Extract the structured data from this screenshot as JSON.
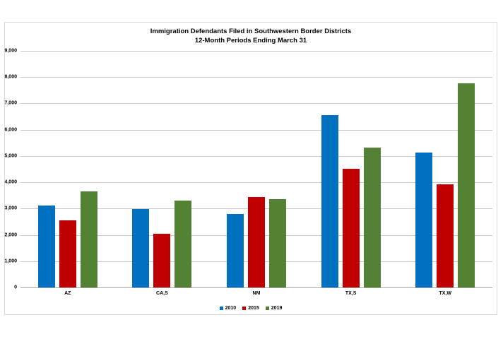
{
  "chart_data": {
    "type": "bar",
    "title": "Immigration Defendants Filed in Southwestern Border Districts",
    "subtitle": "12-Month Periods Ending March 31",
    "categories": [
      "AZ",
      "CA,S",
      "NM",
      "TX,S",
      "TX,W"
    ],
    "series": [
      {
        "name": "2010",
        "color": "#0070C0",
        "values": [
          3120,
          2970,
          2790,
          6560,
          5120
        ]
      },
      {
        "name": "2015",
        "color": "#C00000",
        "values": [
          2540,
          2040,
          3430,
          4520,
          3930
        ]
      },
      {
        "name": "2019",
        "color": "#548235",
        "values": [
          3660,
          3310,
          3360,
          5330,
          7770
        ]
      }
    ],
    "ylim": [
      0,
      9000
    ],
    "ytick_step": 1000,
    "ytick_labels": [
      "0",
      "1,000",
      "2,000",
      "3,000",
      "4,000",
      "5,000",
      "6,000",
      "7,000",
      "8,000",
      "9,000"
    ],
    "grid": "horizontal",
    "legend_position": "bottom",
    "colors": {
      "gridline": "#c9c9c9",
      "axis_line": "#a6a6a6",
      "frame_border": "#d9d9d9",
      "background": "#ffffff",
      "text": "#000000"
    }
  }
}
